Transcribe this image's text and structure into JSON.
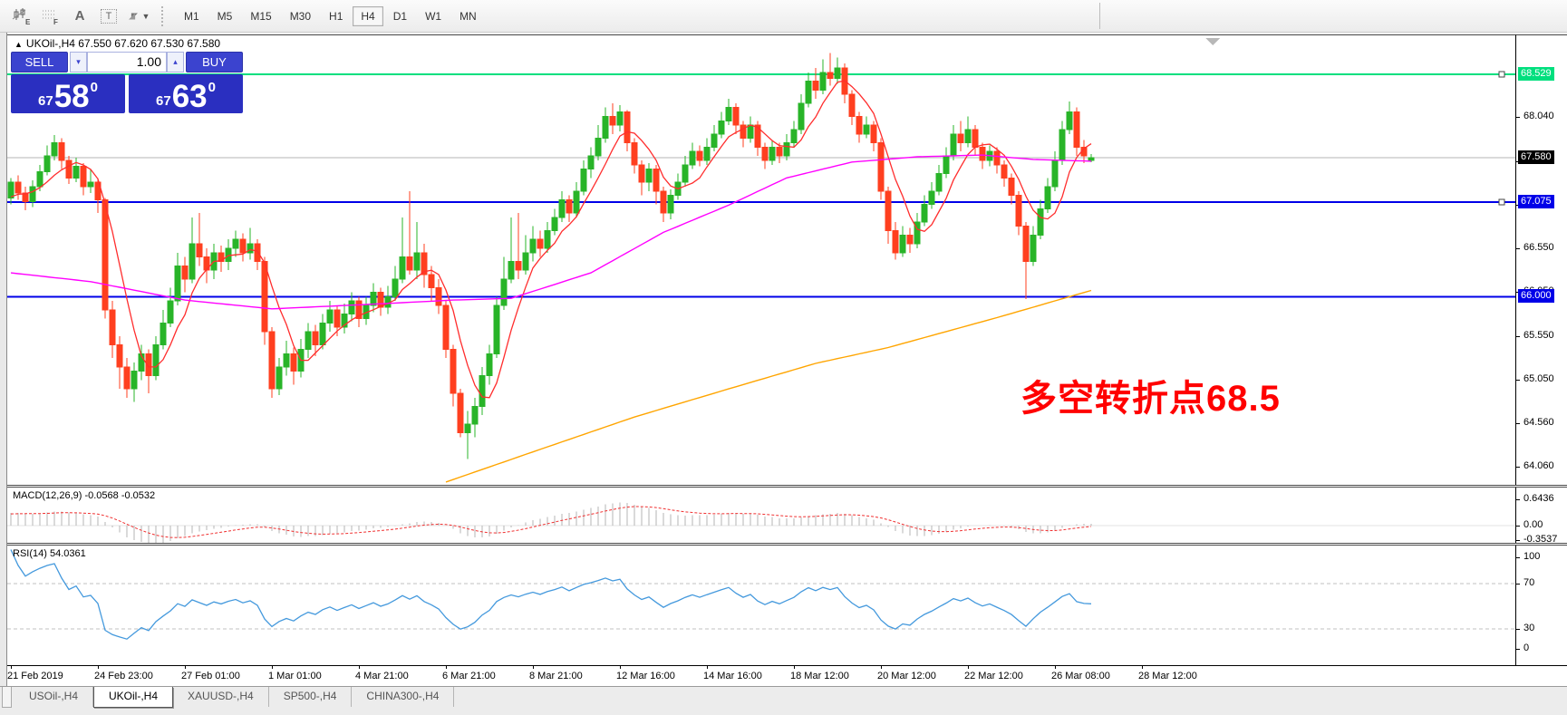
{
  "toolbar": {
    "icons": [
      {
        "name": "indicators-icon"
      },
      {
        "name": "grid-icon"
      },
      {
        "name": "text-icon"
      },
      {
        "name": "label-icon"
      },
      {
        "name": "cursor-tools-icon"
      }
    ],
    "timeframes": [
      "M1",
      "M5",
      "M15",
      "M30",
      "H1",
      "H4",
      "D1",
      "W1",
      "MN"
    ],
    "active_timeframe": "H4"
  },
  "chart": {
    "title_text": "UKOil-,H4  67.550 67.620 67.530 67.580",
    "title_triangle": "▲",
    "symbol": "UKOil-,H4",
    "ohlc_header": {
      "open": "67.550",
      "high": "67.620",
      "low": "67.530",
      "close": "67.580"
    },
    "annotation": {
      "text": "多空转折点68.5",
      "color": "#ff0000"
    },
    "price_ticks": [
      68.04,
      67.54,
      67.04,
      66.55,
      66.05,
      65.55,
      65.05,
      64.56,
      64.06
    ],
    "levels": [
      {
        "name": "resistance-line",
        "price": 68.529,
        "label": "68.529",
        "line_color": "#00DF7E",
        "label_bg": "#00DF7E",
        "width": 2,
        "handle": true
      },
      {
        "name": "current-price-line",
        "price": 67.58,
        "label": "67.580",
        "line_color": "#b4b4b4",
        "label_bg": "#000000",
        "width": 1,
        "handle": false
      },
      {
        "name": "support-line-1",
        "price": 67.075,
        "label": "67.075",
        "line_color": "#0000E8",
        "label_bg": "#0000E8",
        "width": 2,
        "handle": true
      },
      {
        "name": "support-line-2",
        "price": 66.0,
        "label": "66.000",
        "line_color": "#0000E8",
        "label_bg": "#0000E8",
        "width": 2,
        "handle": false
      }
    ],
    "x_labels": [
      "21 Feb 2019",
      "24 Feb 23:00",
      "27 Feb 01:00",
      "1 Mar 01:00",
      "4 Mar 21:00",
      "6 Mar 21:00",
      "8 Mar 21:00",
      "12 Mar 16:00",
      "14 Mar 16:00",
      "18 Mar 12:00",
      "20 Mar 12:00",
      "22 Mar 12:00",
      "26 Mar 08:00",
      "28 Mar 12:00"
    ]
  },
  "trade": {
    "sell_label": "SELL",
    "buy_label": "BUY",
    "volume": "1.00",
    "spin_down": "▾",
    "spin_up": "▴",
    "sell_small": "67",
    "sell_big": "58",
    "sell_sup": "0",
    "buy_small": "67",
    "buy_big": "63",
    "buy_sup": "0"
  },
  "macd_panel": {
    "label": "MACD(12,26,9) -0.0568 -0.0532",
    "axis_values": [
      0.6436,
      0.0,
      -0.3537
    ],
    "value": -0.0568,
    "signal": -0.0532
  },
  "rsi_panel": {
    "label": "RSI(14) 54.0361",
    "value": 54.0361,
    "axis": [
      100,
      70,
      30,
      0
    ],
    "dashed_levels": [
      70,
      30
    ]
  },
  "tabs": [
    {
      "label": "USOil-,H4",
      "active": false
    },
    {
      "label": "UKOil-,H4",
      "active": true
    },
    {
      "label": "XAUUSD-,H4",
      "active": false
    },
    {
      "label": "SP500-,H4",
      "active": false
    },
    {
      "label": "CHINA300-,H4",
      "active": false
    }
  ],
  "colors": {
    "up": "#28b428",
    "down": "#ff3f1f",
    "ma_fast": "#ff2d2d",
    "ma_mid": "#ff00ff",
    "ma_slow": "#ffa500",
    "rsi_line": "#4499dd",
    "macd_hist": "#b5b5b5",
    "macd_signal": "#f03030",
    "level_green": "#00DF7E",
    "level_blue": "#0000E8"
  },
  "chart_data": {
    "type": "candlestick",
    "symbol": "UKOil-,H4",
    "timeframe": "H4",
    "ylim": [
      63.85,
      68.95
    ],
    "prepad": {
      "start": 65.5,
      "end": 67.15,
      "count": 34
    },
    "ohlc": [
      [
        67.12,
        67.35,
        67.05,
        67.3
      ],
      [
        67.3,
        67.38,
        67.1,
        67.18
      ],
      [
        67.18,
        67.25,
        66.98,
        67.08
      ],
      [
        67.08,
        67.32,
        67.02,
        67.25
      ],
      [
        67.25,
        67.5,
        67.2,
        67.42
      ],
      [
        67.42,
        67.72,
        67.38,
        67.6
      ],
      [
        67.6,
        67.84,
        67.55,
        67.75
      ],
      [
        67.75,
        67.8,
        67.45,
        67.55
      ],
      [
        67.55,
        67.6,
        67.28,
        67.35
      ],
      [
        67.35,
        67.58,
        67.3,
        67.48
      ],
      [
        67.48,
        67.52,
        67.15,
        67.25
      ],
      [
        67.25,
        67.45,
        67.18,
        67.3
      ],
      [
        67.3,
        67.35,
        66.95,
        67.1
      ],
      [
        67.1,
        67.12,
        65.75,
        65.85
      ],
      [
        65.85,
        65.95,
        65.3,
        65.45
      ],
      [
        65.45,
        65.55,
        64.95,
        65.2
      ],
      [
        65.2,
        65.3,
        64.85,
        64.95
      ],
      [
        64.95,
        65.25,
        64.8,
        65.15
      ],
      [
        65.15,
        65.45,
        65.05,
        65.35
      ],
      [
        65.35,
        65.4,
        64.9,
        65.1
      ],
      [
        65.1,
        65.55,
        65.05,
        65.45
      ],
      [
        65.45,
        65.85,
        65.4,
        65.7
      ],
      [
        65.7,
        66.1,
        65.65,
        65.95
      ],
      [
        65.95,
        66.5,
        65.9,
        66.35
      ],
      [
        66.35,
        66.45,
        66.05,
        66.2
      ],
      [
        66.2,
        66.9,
        66.15,
        66.6
      ],
      [
        66.6,
        66.95,
        66.35,
        66.45
      ],
      [
        66.45,
        66.55,
        66.15,
        66.3
      ],
      [
        66.3,
        66.6,
        66.2,
        66.5
      ],
      [
        66.5,
        66.58,
        66.28,
        66.4
      ],
      [
        66.4,
        66.65,
        66.3,
        66.55
      ],
      [
        66.55,
        66.75,
        66.45,
        66.65
      ],
      [
        66.65,
        66.72,
        66.4,
        66.5
      ],
      [
        66.5,
        66.78,
        66.42,
        66.6
      ],
      [
        66.6,
        66.65,
        66.3,
        66.4
      ],
      [
        66.4,
        66.45,
        65.45,
        65.6
      ],
      [
        65.6,
        65.65,
        64.85,
        64.95
      ],
      [
        64.95,
        65.3,
        64.88,
        65.2
      ],
      [
        65.2,
        65.5,
        65.1,
        65.35
      ],
      [
        65.35,
        65.42,
        65.0,
        65.15
      ],
      [
        65.15,
        65.52,
        65.08,
        65.4
      ],
      [
        65.4,
        65.7,
        65.3,
        65.6
      ],
      [
        65.6,
        65.68,
        65.32,
        65.45
      ],
      [
        65.45,
        65.8,
        65.4,
        65.7
      ],
      [
        65.7,
        65.95,
        65.6,
        65.85
      ],
      [
        65.85,
        65.9,
        65.55,
        65.65
      ],
      [
        65.65,
        65.92,
        65.58,
        65.8
      ],
      [
        65.8,
        66.05,
        65.72,
        65.95
      ],
      [
        65.95,
        66.0,
        65.65,
        65.75
      ],
      [
        65.75,
        66.0,
        65.68,
        65.9
      ],
      [
        65.9,
        66.15,
        65.82,
        66.05
      ],
      [
        66.05,
        66.1,
        65.78,
        65.88
      ],
      [
        65.88,
        66.12,
        65.8,
        66.0
      ],
      [
        66.0,
        66.35,
        65.95,
        66.2
      ],
      [
        66.2,
        66.9,
        66.15,
        66.45
      ],
      [
        66.45,
        67.2,
        66.25,
        66.3
      ],
      [
        66.3,
        66.85,
        66.2,
        66.5
      ],
      [
        66.5,
        66.6,
        66.1,
        66.25
      ],
      [
        66.25,
        66.35,
        65.95,
        66.1
      ],
      [
        66.1,
        66.2,
        65.8,
        65.9
      ],
      [
        65.9,
        65.95,
        65.3,
        65.4
      ],
      [
        65.4,
        65.45,
        64.75,
        64.9
      ],
      [
        64.9,
        64.95,
        64.4,
        64.45
      ],
      [
        64.45,
        64.7,
        64.15,
        64.55
      ],
      [
        64.55,
        64.85,
        64.4,
        64.75
      ],
      [
        64.75,
        65.2,
        64.65,
        65.1
      ],
      [
        65.1,
        65.45,
        65.0,
        65.35
      ],
      [
        65.35,
        66.0,
        65.3,
        65.9
      ],
      [
        65.9,
        66.45,
        65.85,
        66.2
      ],
      [
        66.2,
        66.9,
        66.15,
        66.4
      ],
      [
        66.4,
        66.95,
        66.2,
        66.3
      ],
      [
        66.3,
        66.7,
        66.25,
        66.5
      ],
      [
        66.5,
        66.8,
        66.4,
        66.65
      ],
      [
        66.65,
        66.75,
        66.45,
        66.55
      ],
      [
        66.55,
        66.85,
        66.5,
        66.75
      ],
      [
        66.75,
        67.0,
        66.7,
        66.9
      ],
      [
        66.9,
        67.2,
        66.85,
        67.1
      ],
      [
        67.1,
        67.15,
        66.85,
        66.95
      ],
      [
        66.95,
        67.3,
        66.9,
        67.2
      ],
      [
        67.2,
        67.55,
        67.15,
        67.45
      ],
      [
        67.45,
        67.7,
        67.35,
        67.6
      ],
      [
        67.6,
        67.95,
        67.55,
        67.8
      ],
      [
        67.8,
        68.15,
        67.75,
        68.05
      ],
      [
        68.05,
        68.2,
        67.85,
        67.95
      ],
      [
        67.95,
        68.18,
        67.88,
        68.1
      ],
      [
        68.1,
        68.12,
        67.65,
        67.75
      ],
      [
        67.75,
        67.8,
        67.4,
        67.5
      ],
      [
        67.5,
        67.55,
        67.15,
        67.3
      ],
      [
        67.3,
        67.52,
        67.2,
        67.45
      ],
      [
        67.45,
        67.5,
        67.05,
        67.2
      ],
      [
        67.2,
        67.25,
        66.85,
        66.95
      ],
      [
        66.95,
        67.22,
        66.88,
        67.15
      ],
      [
        67.15,
        67.4,
        67.1,
        67.3
      ],
      [
        67.3,
        67.6,
        67.25,
        67.5
      ],
      [
        67.5,
        67.75,
        67.45,
        67.65
      ],
      [
        67.65,
        67.72,
        67.48,
        67.55
      ],
      [
        67.55,
        67.8,
        67.5,
        67.7
      ],
      [
        67.7,
        67.95,
        67.65,
        67.85
      ],
      [
        67.85,
        68.1,
        67.8,
        68.0
      ],
      [
        68.0,
        68.25,
        67.95,
        68.15
      ],
      [
        68.15,
        68.2,
        67.85,
        67.95
      ],
      [
        67.95,
        68.0,
        67.7,
        67.8
      ],
      [
        67.8,
        68.05,
        67.75,
        67.95
      ],
      [
        67.95,
        68.0,
        67.6,
        67.7
      ],
      [
        67.7,
        67.75,
        67.45,
        67.55
      ],
      [
        67.55,
        67.78,
        67.5,
        67.7
      ],
      [
        67.7,
        67.75,
        67.52,
        67.6
      ],
      [
        67.6,
        67.85,
        67.55,
        67.75
      ],
      [
        67.75,
        68.0,
        67.7,
        67.9
      ],
      [
        67.9,
        68.3,
        67.85,
        68.2
      ],
      [
        68.2,
        68.55,
        68.15,
        68.45
      ],
      [
        68.45,
        68.6,
        68.25,
        68.35
      ],
      [
        68.35,
        68.7,
        68.3,
        68.55
      ],
      [
        68.55,
        68.77,
        68.4,
        68.48
      ],
      [
        68.48,
        68.72,
        68.42,
        68.6
      ],
      [
        68.6,
        68.65,
        68.2,
        68.3
      ],
      [
        68.3,
        68.35,
        67.95,
        68.05
      ],
      [
        68.05,
        68.1,
        67.75,
        67.85
      ],
      [
        67.85,
        68.05,
        67.8,
        67.95
      ],
      [
        67.95,
        68.0,
        67.65,
        67.75
      ],
      [
        67.75,
        67.8,
        67.1,
        67.2
      ],
      [
        67.2,
        67.25,
        66.6,
        66.75
      ],
      [
        66.75,
        66.85,
        66.42,
        66.5
      ],
      [
        66.5,
        66.8,
        66.45,
        66.7
      ],
      [
        66.7,
        66.78,
        66.5,
        66.6
      ],
      [
        66.6,
        66.95,
        66.55,
        66.85
      ],
      [
        66.85,
        67.15,
        66.8,
        67.05
      ],
      [
        67.05,
        67.3,
        67.0,
        67.2
      ],
      [
        67.2,
        67.5,
        67.15,
        67.4
      ],
      [
        67.4,
        67.7,
        67.35,
        67.6
      ],
      [
        67.6,
        67.95,
        67.55,
        67.85
      ],
      [
        67.85,
        68.0,
        67.65,
        67.75
      ],
      [
        67.75,
        68.05,
        67.7,
        67.9
      ],
      [
        67.9,
        67.95,
        67.6,
        67.7
      ],
      [
        67.7,
        67.75,
        67.45,
        67.55
      ],
      [
        67.55,
        67.72,
        67.48,
        67.65
      ],
      [
        67.65,
        67.7,
        67.4,
        67.5
      ],
      [
        67.5,
        67.55,
        67.25,
        67.35
      ],
      [
        67.35,
        67.4,
        67.05,
        67.15
      ],
      [
        67.15,
        67.2,
        66.7,
        66.8
      ],
      [
        66.8,
        66.85,
        65.97,
        66.4
      ],
      [
        66.4,
        66.8,
        66.35,
        66.7
      ],
      [
        66.7,
        67.1,
        66.65,
        67.0
      ],
      [
        67.0,
        67.35,
        66.95,
        67.25
      ],
      [
        67.25,
        67.65,
        67.2,
        67.55
      ],
      [
        67.55,
        68.0,
        67.5,
        67.9
      ],
      [
        67.9,
        68.22,
        67.85,
        68.1
      ],
      [
        68.1,
        68.15,
        67.6,
        67.7
      ],
      [
        67.7,
        67.78,
        67.52,
        67.6
      ],
      [
        67.55,
        67.62,
        67.53,
        67.58
      ]
    ],
    "ma_magenta_keypoints": [
      [
        0,
        66.27
      ],
      [
        11,
        66.17
      ],
      [
        24,
        65.96
      ],
      [
        36,
        65.86
      ],
      [
        49,
        65.91
      ],
      [
        61,
        65.96
      ],
      [
        69,
        65.98
      ],
      [
        80,
        66.27
      ],
      [
        90,
        66.73
      ],
      [
        99,
        67.04
      ],
      [
        107,
        67.35
      ],
      [
        116,
        67.53
      ],
      [
        125,
        67.59
      ],
      [
        134,
        67.61
      ],
      [
        141,
        67.56
      ],
      [
        149,
        67.54
      ]
    ],
    "ma_orange_keypoints": [
      [
        60,
        63.89
      ],
      [
        74,
        64.29
      ],
      [
        86,
        64.63
      ],
      [
        99,
        64.95
      ],
      [
        111,
        65.24
      ],
      [
        121,
        65.42
      ],
      [
        136,
        65.76
      ],
      [
        149,
        66.07
      ]
    ]
  }
}
